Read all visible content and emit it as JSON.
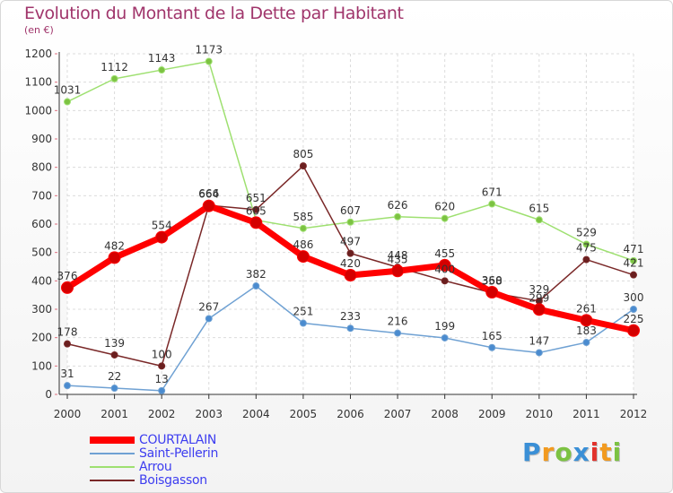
{
  "title": "Evolution du Montant de la Dette par Habitant",
  "subtitle": "(en €)",
  "logo": {
    "text": "Proxiti",
    "letters": [
      {
        "ch": "P",
        "color": "#3a8fd6"
      },
      {
        "ch": "r",
        "color": "#f29a1f"
      },
      {
        "ch": "o",
        "color": "#7cc242"
      },
      {
        "ch": "x",
        "color": "#3a8fd6"
      },
      {
        "ch": "i",
        "color": "#e2322b"
      },
      {
        "ch": "t",
        "color": "#f29a1f"
      },
      {
        "ch": "i",
        "color": "#7cc242"
      }
    ]
  },
  "legend": [
    {
      "name": "COURTALAIN",
      "color": "#ff0000",
      "label_color": "#3d3df0"
    },
    {
      "name": "Saint-Pellerin",
      "color": "#6fa1d3",
      "label_color": "#3d3df0"
    },
    {
      "name": "Arrou",
      "color": "#9ee070",
      "label_color": "#3d3df0"
    },
    {
      "name": "Boisgasson",
      "color": "#7a2828",
      "label_color": "#3d3df0"
    }
  ],
  "chart_data": {
    "type": "line",
    "title": "Evolution du Montant de la Dette par Habitant",
    "subtitle": "(en €)",
    "x": [
      "2000",
      "2001",
      "2002",
      "2003",
      "2004",
      "2005",
      "2006",
      "2007",
      "2008",
      "2009",
      "2010",
      "2011",
      "2012"
    ],
    "ylim": [
      0,
      1200
    ],
    "yticks": [
      0,
      100,
      200,
      300,
      400,
      500,
      600,
      700,
      800,
      900,
      1000,
      1100,
      1200
    ],
    "grid": true,
    "legend_position": "bottom-left",
    "series": [
      {
        "name": "Arrou",
        "color": "#9ee070",
        "marker": "#7cc242",
        "values": [
          1031,
          1112,
          1143,
          1173,
          614,
          585,
          607,
          626,
          620,
          671,
          615,
          529,
          471
        ]
      },
      {
        "name": "Boisgasson",
        "color": "#7a2828",
        "marker": "#6a1f1f",
        "values": [
          178,
          139,
          100,
          666,
          651,
          805,
          497,
          448,
          400,
          358,
          329,
          475,
          421
        ]
      },
      {
        "name": "Saint-Pellerin",
        "color": "#6fa1d3",
        "marker": "#4a8bcf",
        "values": [
          31,
          22,
          13,
          267,
          382,
          251,
          233,
          216,
          199,
          165,
          147,
          183,
          300
        ]
      },
      {
        "name": "COURTALAIN",
        "color": "#ff0000",
        "marker": "#d40000",
        "values": [
          376,
          482,
          554,
          664,
          605,
          486,
          420,
          435,
          455,
          360,
          299,
          261,
          225
        ]
      }
    ],
    "value_labels": {
      "Arrou": [
        "1031",
        "1112",
        "1143",
        "1173",
        "",
        "585",
        "607",
        "626",
        "620",
        "671",
        "615",
        "529",
        "471"
      ],
      "Boisgasson": [
        "178",
        "139",
        "100",
        "666",
        "651",
        "805",
        "497",
        "448",
        "400",
        "358",
        "329",
        "475",
        "421"
      ],
      "Saint-Pellerin": [
        "31",
        "22",
        "13",
        "267",
        "382",
        "251",
        "233",
        "216",
        "199",
        "165",
        "147",
        "183",
        "300"
      ],
      "COURTALAIN": [
        "376",
        "482",
        "554",
        "664",
        "605",
        "486",
        "420",
        "435",
        "455",
        "360",
        "299",
        "261",
        "225"
      ]
    }
  }
}
